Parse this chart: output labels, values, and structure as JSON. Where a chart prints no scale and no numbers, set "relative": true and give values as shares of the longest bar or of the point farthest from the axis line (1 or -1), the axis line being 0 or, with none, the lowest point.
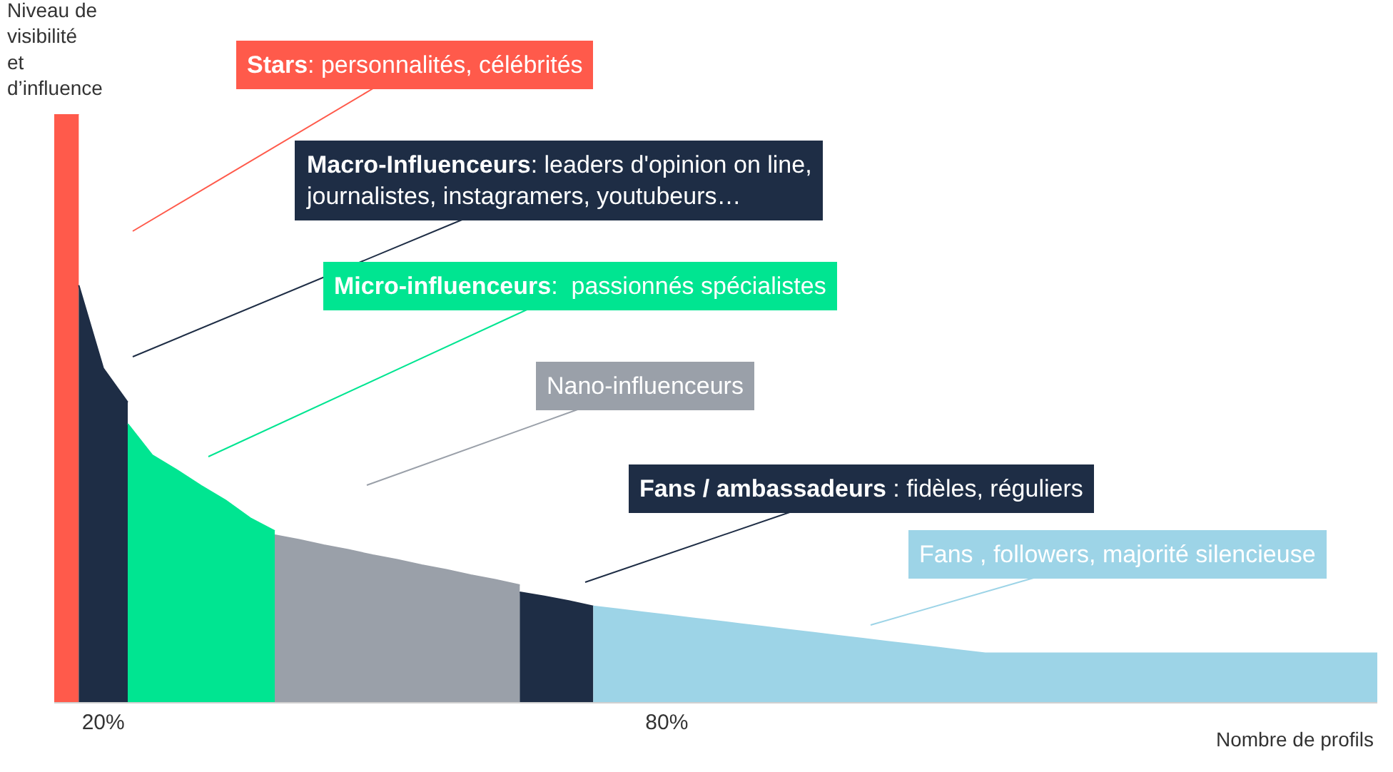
{
  "chart_data": {
    "type": "area",
    "relative": true,
    "ylabel": "Niveau de visibilité et d’influence",
    "xlabel": "Nombre de profils",
    "legend": false,
    "categories": [
      null,
      null,
      "20%",
      null,
      null,
      null,
      null,
      null,
      null,
      null,
      null,
      null,
      null,
      null,
      null,
      null,
      null,
      null,
      null,
      null,
      null,
      null,
      null,
      null,
      null,
      "80%",
      null,
      null,
      null,
      null,
      null,
      null,
      null,
      null,
      null,
      null,
      null,
      null,
      null,
      null,
      null,
      null,
      null,
      null,
      null,
      null,
      null,
      null,
      null,
      null,
      null,
      null,
      null,
      null,
      null
    ],
    "series": [
      {
        "name": "Stars: personnalités, célébrités",
        "color": "#ff5a4b",
        "values": [
          1,
          1,
          null,
          null,
          null,
          null,
          null,
          null,
          null,
          null,
          null,
          null,
          null,
          null,
          null,
          null,
          null,
          null,
          null,
          null,
          null,
          null,
          null,
          null,
          null,
          null,
          null,
          null,
          null,
          null,
          null,
          null,
          null,
          null,
          null,
          null,
          null,
          null,
          null,
          null,
          null,
          null,
          null,
          null,
          null,
          null,
          null,
          null,
          null,
          null,
          null,
          null,
          null,
          null,
          null
        ]
      },
      {
        "name": "Macro-Influenceurs: leaders d'opinion on line, journalistes, instagramers, youtubeurs…",
        "color": "#1e2d45",
        "values": [
          null,
          0.709,
          0.568,
          0.51,
          null,
          null,
          null,
          null,
          null,
          null,
          null,
          null,
          null,
          null,
          null,
          null,
          null,
          null,
          null,
          null,
          null,
          null,
          null,
          null,
          null,
          null,
          null,
          null,
          null,
          null,
          null,
          null,
          null,
          null,
          null,
          null,
          null,
          null,
          null,
          null,
          null,
          null,
          null,
          null,
          null,
          null,
          null,
          null,
          null,
          null,
          null,
          null,
          null,
          null,
          null
        ]
      },
      {
        "name": "Micro-influenceurs:  passionnés spécialistes",
        "color": "#00e591",
        "values": [
          null,
          null,
          null,
          0.473,
          0.42,
          0.395,
          0.368,
          0.343,
          0.313,
          0.291,
          null,
          null,
          null,
          null,
          null,
          null,
          null,
          null,
          null,
          null,
          null,
          null,
          null,
          null,
          null,
          null,
          null,
          null,
          null,
          null,
          null,
          null,
          null,
          null,
          null,
          null,
          null,
          null,
          null,
          null,
          null,
          null,
          null,
          null,
          null,
          null,
          null,
          null,
          null,
          null,
          null,
          null,
          null,
          null,
          null
        ]
      },
      {
        "name": "Nano-influenceurs",
        "color": "#9aa0a9",
        "values": [
          null,
          null,
          null,
          null,
          null,
          null,
          null,
          null,
          null,
          0.284,
          0.276,
          0.267,
          0.259,
          0.25,
          0.242,
          0.233,
          0.225,
          0.216,
          0.208,
          0.199,
          null,
          null,
          null,
          null,
          null,
          null,
          null,
          null,
          null,
          null,
          null,
          null,
          null,
          null,
          null,
          null,
          null,
          null,
          null,
          null,
          null,
          null,
          null,
          null,
          null,
          null,
          null,
          null,
          null,
          null,
          null,
          null,
          null,
          null,
          null
        ]
      },
      {
        "name": "Fans / ambassadeurs : fidèles, réguliers",
        "color": "#1e2d45",
        "values": [
          null,
          null,
          null,
          null,
          null,
          null,
          null,
          null,
          null,
          null,
          null,
          null,
          null,
          null,
          null,
          null,
          null,
          null,
          null,
          0.187,
          0.18,
          0.172,
          0.163,
          null,
          null,
          null,
          null,
          null,
          null,
          null,
          null,
          null,
          null,
          null,
          null,
          null,
          null,
          null,
          null,
          null,
          null,
          null,
          null,
          null,
          null,
          null,
          null,
          null,
          null,
          null,
          null,
          null,
          null,
          null,
          null
        ]
      },
      {
        "name": "Fans , followers, majorité silencieuse",
        "color": "#9dd4e7",
        "values": [
          null,
          null,
          null,
          null,
          null,
          null,
          null,
          null,
          null,
          null,
          null,
          null,
          null,
          null,
          null,
          null,
          null,
          null,
          null,
          null,
          null,
          null,
          0.163,
          0.158,
          0.153,
          0.148,
          0.143,
          0.138,
          0.133,
          0.128,
          0.123,
          0.118,
          0.113,
          0.108,
          0.103,
          0.098,
          0.093,
          0.088,
          0.083,
          0.083,
          0.083,
          0.083,
          0.083,
          0.083,
          0.083,
          0.083,
          0.083,
          0.083,
          0.083,
          0.083,
          0.083,
          0.083,
          0.083,
          0.083,
          0.083
        ]
      }
    ]
  }
}
